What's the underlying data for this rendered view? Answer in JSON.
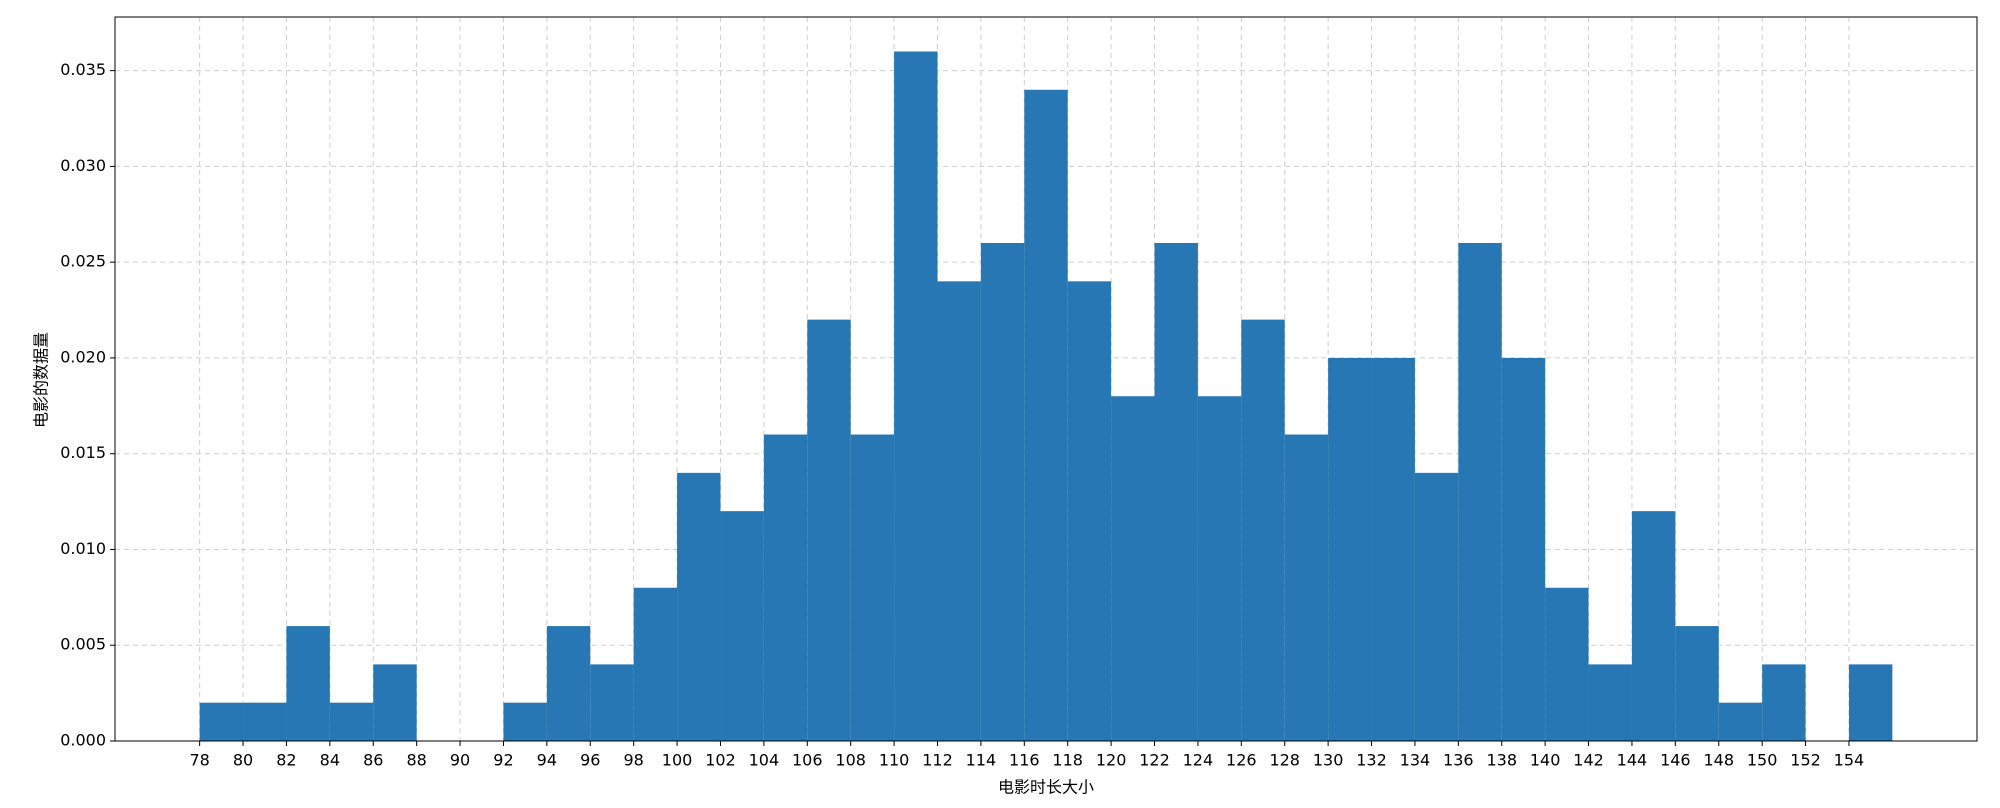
{
  "chart_data": {
    "type": "histogram",
    "x_label": "电影时长大小",
    "y_label": "电影的数据量",
    "bins": [
      78,
      80,
      82,
      84,
      86,
      88,
      90,
      92,
      94,
      96,
      98,
      100,
      102,
      104,
      106,
      108,
      110,
      112,
      114,
      116,
      118,
      120,
      122,
      124,
      126,
      128,
      130,
      132,
      134,
      136,
      138,
      140,
      142,
      144,
      146,
      148,
      150,
      152,
      154,
      156
    ],
    "counts": [
      0.002,
      0.002,
      0.006,
      0.002,
      0.004,
      0,
      0,
      0.002,
      0.006,
      0.004,
      0.008,
      0.014,
      0.012,
      0.016,
      0.022,
      0.016,
      0.036,
      0.024,
      0.026,
      0.034,
      0.024,
      0.018,
      0.026,
      0.018,
      0.022,
      0.016,
      0.02,
      0.02,
      0.014,
      0.026,
      0.02,
      0.008,
      0.004,
      0.012,
      0.006,
      0.002,
      0.004,
      0,
      0.004
    ],
    "color": "#2777b4",
    "xlim": [
      74.1,
      159.9
    ],
    "xticks": [
      78,
      80,
      82,
      84,
      86,
      88,
      90,
      92,
      94,
      96,
      98,
      100,
      102,
      104,
      106,
      108,
      110,
      112,
      114,
      116,
      118,
      120,
      122,
      124,
      126,
      128,
      130,
      132,
      134,
      136,
      138,
      140,
      142,
      144,
      146,
      148,
      150,
      152,
      154
    ],
    "ylim": [
      0,
      0.0378
    ],
    "yticks": [
      {
        "value": 0,
        "label": "0.000"
      },
      0.005,
      {
        "value": 0.01,
        "label": "0.010"
      },
      0.015,
      {
        "value": 0.02,
        "label": "0.020"
      },
      0.025,
      {
        "value": 0.03,
        "label": "0.030"
      },
      0.035
    ],
    "grid": true
  }
}
